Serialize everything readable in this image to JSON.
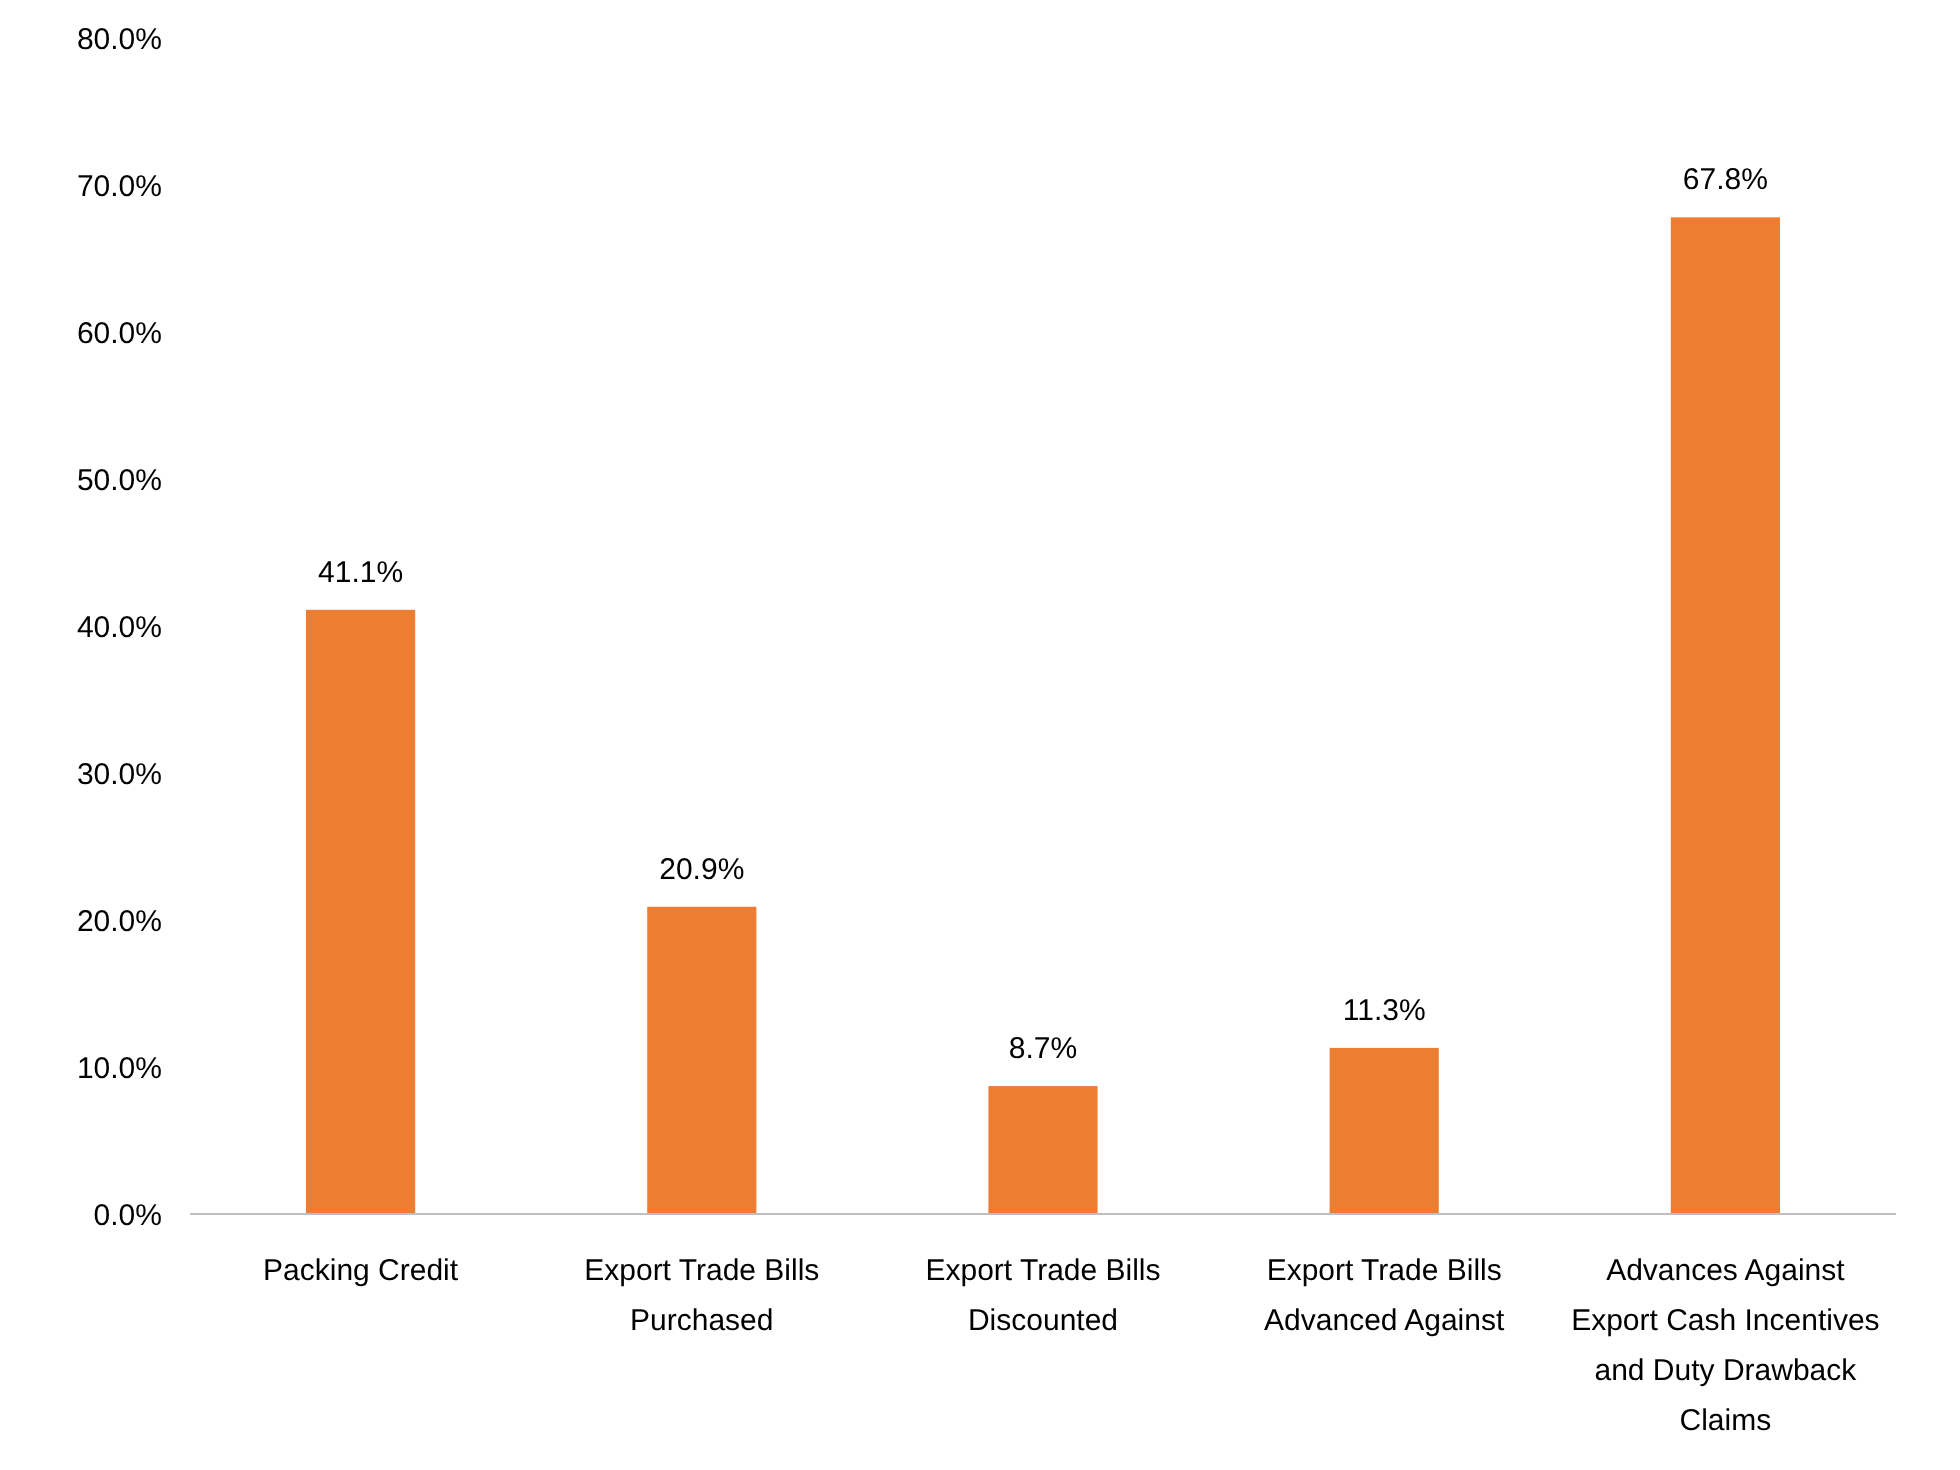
{
  "chart_data": {
    "type": "bar",
    "categories": [
      "Packing Credit",
      "Export Trade Bills Purchased",
      "Export Trade Bills Discounted",
      "Export Trade Bills Advanced Against",
      "Advances Against Export Cash Incentives and Duty Drawback Claims"
    ],
    "values": [
      41.1,
      20.9,
      8.7,
      11.3,
      67.8
    ],
    "value_labels": [
      "41.1%",
      "20.9%",
      "8.7%",
      "11.3%",
      "67.8%"
    ],
    "color": "#ed7d31",
    "ylim": [
      0,
      80
    ],
    "yticks": [
      {
        "value": 0,
        "label": "0.0%"
      },
      {
        "value": 10,
        "label": "10.0%"
      },
      {
        "value": 20,
        "label": "20.0%"
      },
      {
        "value": 30,
        "label": "30.0%"
      },
      {
        "value": 40,
        "label": "40.0%"
      },
      {
        "value": 50,
        "label": "50.0%"
      },
      {
        "value": 60,
        "label": "60.0%"
      },
      {
        "value": 70,
        "label": "70.0%"
      },
      {
        "value": 80,
        "label": "80.0%"
      }
    ],
    "grid": false
  }
}
